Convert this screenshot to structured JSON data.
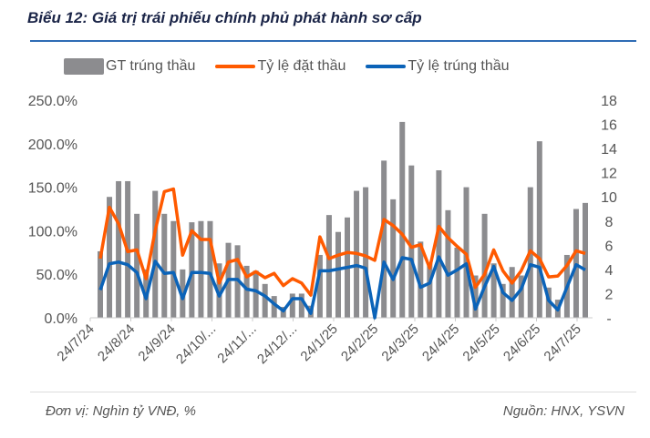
{
  "title": "Biểu 12: Giá trị trái phiếu chính phủ phát hành sơ cấp",
  "footer": {
    "unit": "Đơn vị: Nghìn tỷ VNĐ, %",
    "source": "Nguồn: HNX, YSVN"
  },
  "chart_data": {
    "type": "bar+line",
    "legend_position": "top",
    "grid": false,
    "colors": {
      "bars": "#8c8c8f",
      "bid_ratio": "#ff5a00",
      "win_ratio": "#0b63b8"
    },
    "x_tick_labels": [
      "24/7/24",
      "24/8/24",
      "24/9/24",
      "24/10/...",
      "24/11/...",
      "24/12/...",
      "24/1/25",
      "24/2/25",
      "24/3/25",
      "24/4/25",
      "24/5/25",
      "24/6/25",
      "24/7/25"
    ],
    "y_left": {
      "ticks": [
        "0.0%",
        "50.0%",
        "100.0%",
        "150.0%",
        "200.0%",
        "250.0%"
      ],
      "range": [
        0,
        250
      ]
    },
    "y_right": {
      "ticks": [
        "-",
        "2",
        "4",
        "6",
        "8",
        "10",
        "12",
        "14",
        "16",
        "18"
      ],
      "range": [
        0,
        18
      ]
    },
    "series": [
      {
        "name": "GT trúng thầu",
        "type": "bar",
        "axis": "right",
        "values": [
          5.5,
          10,
          11.3,
          11.3,
          8.6,
          4,
          10.5,
          8.6,
          8,
          4,
          7.9,
          8,
          8,
          4.5,
          6.2,
          6,
          4.3,
          3.9,
          2.8,
          1.8,
          0.9,
          2,
          2,
          1,
          5.2,
          8.5,
          7.1,
          8.3,
          10.5,
          10.8,
          0,
          13,
          9.8,
          16.2,
          12.6,
          6.3,
          4.5,
          12.2,
          8.9,
          5.8,
          10.8,
          3.5,
          8.6,
          4.5,
          2.8,
          4.2,
          3.5,
          10.8,
          14.6,
          2.5,
          1.5,
          5.2,
          9,
          9.5
        ]
      },
      {
        "name": "Tỷ lệ đặt thầu",
        "type": "line",
        "axis": "left",
        "values": [
          68,
          127,
          108,
          76,
          78,
          45,
          100,
          145,
          148,
          72,
          100,
          90,
          90,
          40,
          64,
          67,
          47,
          53,
          46,
          51,
          37,
          45,
          40,
          26,
          93,
          68,
          72,
          75,
          74,
          71,
          66,
          113,
          106,
          96,
          81,
          84,
          57,
          105,
          92,
          82,
          73,
          35,
          50,
          78,
          54,
          40,
          54,
          77,
          68,
          47,
          48,
          60,
          77,
          74
        ]
      },
      {
        "name": "Tỷ lệ trúng thầu",
        "type": "line",
        "axis": "left",
        "values": [
          32,
          62,
          64,
          61,
          52,
          22,
          65,
          51,
          52,
          22,
          52,
          52,
          51,
          25,
          44,
          44,
          33,
          31,
          25,
          16,
          8,
          22,
          22,
          5,
          54,
          54,
          56,
          58,
          60,
          57,
          0,
          64,
          44,
          69,
          67,
          35,
          40,
          70,
          49,
          55,
          62,
          10,
          36,
          59,
          29,
          20,
          33,
          61,
          58,
          20,
          9,
          35,
          61,
          55
        ]
      }
    ]
  }
}
